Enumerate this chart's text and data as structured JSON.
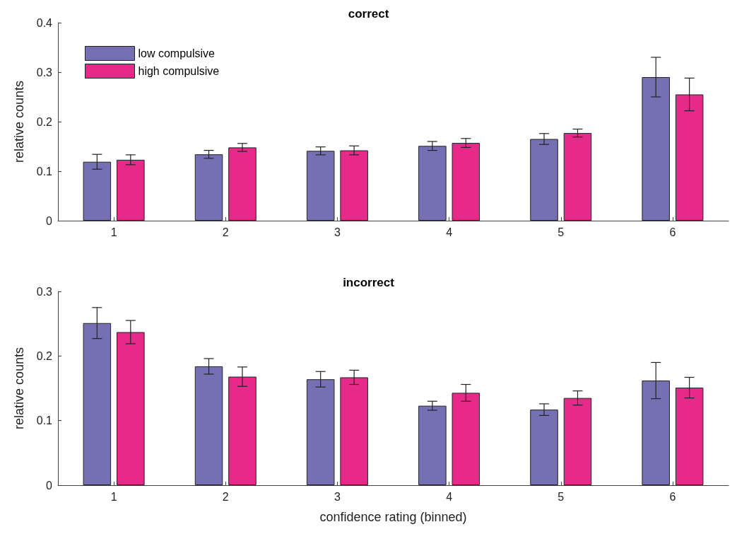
{
  "chart_data": [
    {
      "type": "bar",
      "title": "correct",
      "ylabel": "relative counts",
      "categories": [
        "1",
        "2",
        "3",
        "4",
        "5",
        "6"
      ],
      "ylim": [
        0,
        0.4
      ],
      "yticks": [
        0,
        0.1,
        0.2,
        0.3,
        0.4
      ],
      "grid": false,
      "legend": "top left",
      "series": [
        {
          "name": "low compulsive",
          "color": "#7570b3",
          "values": [
            0.119,
            0.134,
            0.141,
            0.151,
            0.165,
            0.29
          ],
          "errors": [
            0.015,
            0.008,
            0.008,
            0.009,
            0.011,
            0.04
          ]
        },
        {
          "name": "high compulsive",
          "color": "#e7298a",
          "values": [
            0.123,
            0.148,
            0.142,
            0.157,
            0.177,
            0.255
          ],
          "errors": [
            0.01,
            0.008,
            0.009,
            0.009,
            0.008,
            0.033
          ]
        }
      ]
    },
    {
      "type": "bar",
      "title": "incorrect",
      "ylabel": "relative counts",
      "xlabel": "confidence rating (binned)",
      "categories": [
        "1",
        "2",
        "3",
        "4",
        "5",
        "6"
      ],
      "ylim": [
        0,
        0.3
      ],
      "yticks": [
        0,
        0.1,
        0.2,
        0.3
      ],
      "grid": false,
      "legend": false,
      "series": [
        {
          "color": "#7570b3",
          "values": [
            0.251,
            0.184,
            0.164,
            0.123,
            0.117,
            0.162
          ],
          "errors": [
            0.024,
            0.012,
            0.012,
            0.007,
            0.009,
            0.028
          ]
        },
        {
          "color": "#e7298a",
          "values": [
            0.237,
            0.168,
            0.167,
            0.143,
            0.135,
            0.151
          ],
          "errors": [
            0.018,
            0.015,
            0.011,
            0.013,
            0.011,
            0.016
          ]
        }
      ]
    }
  ]
}
